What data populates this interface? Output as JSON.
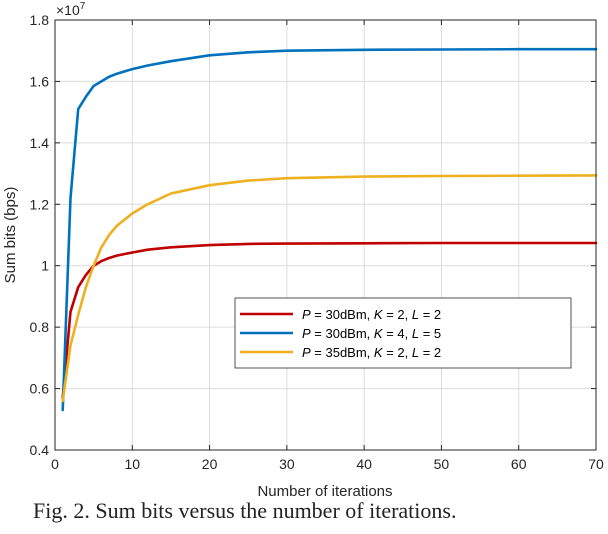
{
  "chart_data": {
    "type": "line",
    "title": "",
    "xlabel": "Number of iterations",
    "ylabel": "Sum bits (bps)",
    "y_multiplier": "×10",
    "y_multiplier_exp": "7",
    "xlim": [
      0,
      70
    ],
    "ylim": [
      0.4,
      1.8
    ],
    "xticks": [
      0,
      10,
      20,
      30,
      40,
      50,
      60,
      70
    ],
    "yticks": [
      0.4,
      0.6,
      0.8,
      1,
      1.2,
      1.4,
      1.6,
      1.8
    ],
    "ytick_labels": [
      "0.4",
      "0.6",
      "0.8",
      "1",
      "1.2",
      "1.4",
      "1.6",
      "1.8"
    ],
    "grid": true,
    "legend_position": "center-right",
    "series": [
      {
        "name_parts": [
          "P",
          " = 30dBm,  ",
          "K",
          " = 2,  ",
          "L",
          " = 2"
        ],
        "color": "#c00000",
        "x": [
          1,
          2,
          3,
          4,
          5,
          6,
          7,
          8,
          10,
          12,
          15,
          20,
          25,
          30,
          40,
          50,
          60,
          70
        ],
        "y": [
          0.57,
          0.85,
          0.93,
          0.97,
          1.0,
          1.015,
          1.025,
          1.033,
          1.043,
          1.052,
          1.06,
          1.067,
          1.071,
          1.072,
          1.073,
          1.074,
          1.074,
          1.074
        ]
      },
      {
        "name_parts": [
          "P",
          " = 30dBm,  ",
          "K",
          " = 4,  ",
          "L",
          " = 5"
        ],
        "color": "#0072bd",
        "x": [
          1,
          2,
          3,
          4,
          5,
          6,
          7,
          8,
          10,
          12,
          15,
          20,
          25,
          30,
          40,
          50,
          60,
          70
        ],
        "y": [
          0.53,
          1.22,
          1.51,
          1.55,
          1.585,
          1.6,
          1.615,
          1.625,
          1.64,
          1.652,
          1.666,
          1.685,
          1.695,
          1.7,
          1.703,
          1.704,
          1.705,
          1.705
        ]
      },
      {
        "name_parts": [
          "P",
          " = 35dBm,  ",
          "K",
          " = 2,  ",
          "L",
          " = 2"
        ],
        "color": "#edb120",
        "x": [
          1,
          2,
          3,
          4,
          5,
          6,
          7,
          8,
          10,
          12,
          15,
          20,
          25,
          30,
          40,
          50,
          60,
          70
        ],
        "y": [
          0.56,
          0.74,
          0.84,
          0.93,
          1.0,
          1.06,
          1.1,
          1.13,
          1.17,
          1.2,
          1.235,
          1.262,
          1.277,
          1.285,
          1.29,
          1.292,
          1.293,
          1.294
        ]
      }
    ]
  },
  "caption": "Fig. 2. Sum bits versus the number of iterations."
}
